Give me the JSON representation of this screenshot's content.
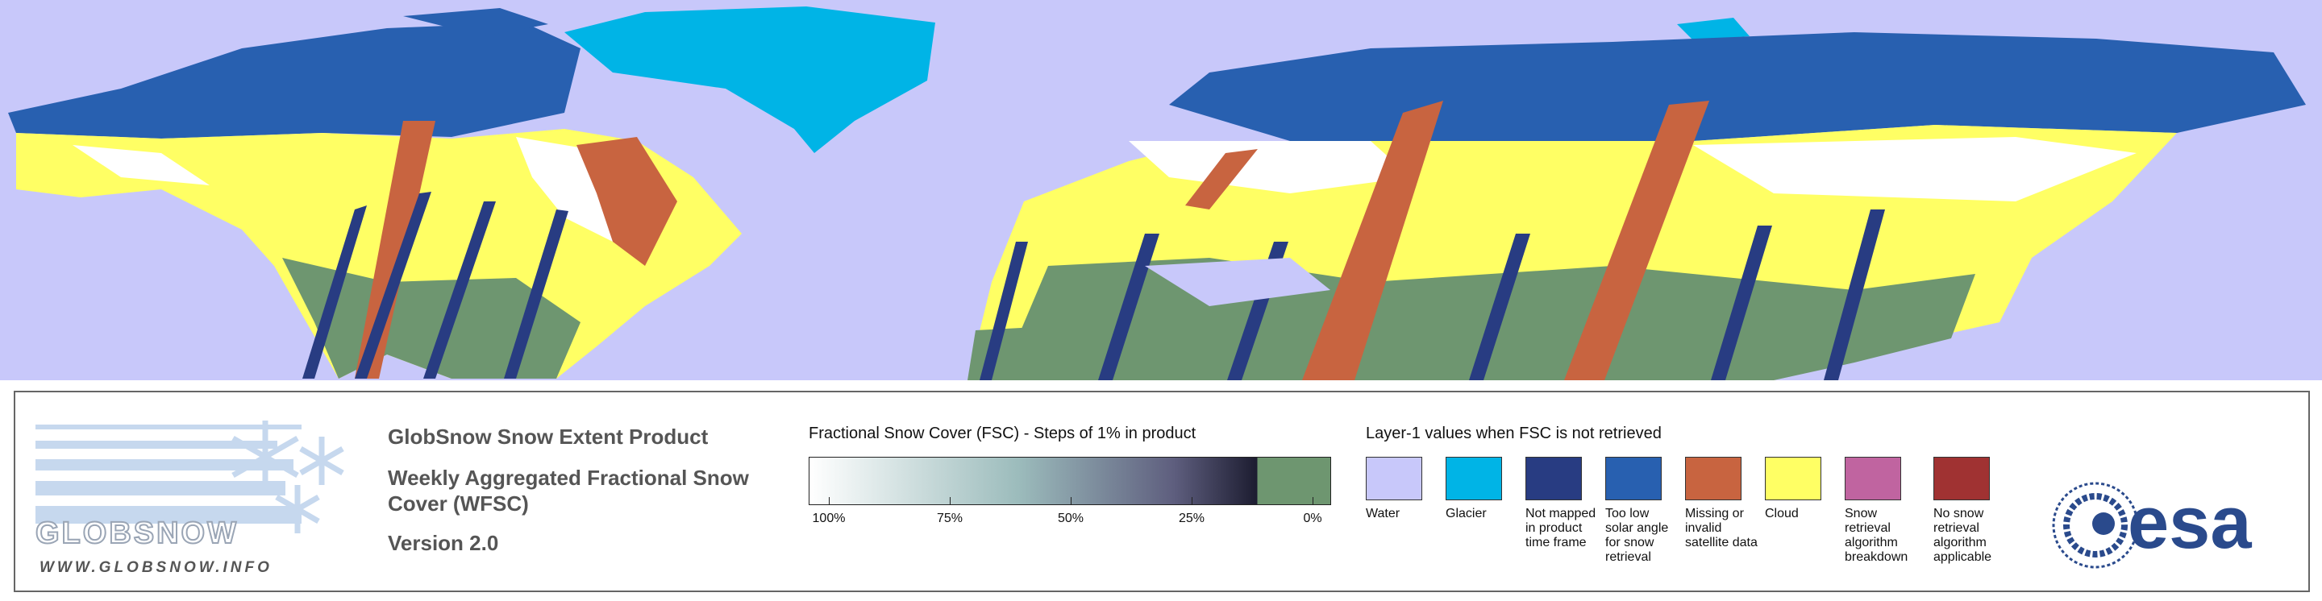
{
  "logo": {
    "name": "GLOBSNOW",
    "url": "WWW.GLOBSNOW.INFO"
  },
  "header": {
    "title": "GlobSnow Snow Extent Product",
    "subtitle": "Weekly Aggregated Fractional Snow Cover (WFSC)",
    "version": "Version 2.0"
  },
  "colorbar": {
    "title": "Fractional Snow Cover (FSC) - Steps of 1% in product",
    "ticks": [
      {
        "value": 100,
        "label": "100%"
      },
      {
        "value": 75,
        "label": "75%"
      },
      {
        "value": 50,
        "label": "50%"
      },
      {
        "value": 25,
        "label": "25%"
      },
      {
        "value": 0,
        "label": "0%"
      }
    ]
  },
  "legend": {
    "title": "Layer-1 values when FSC is not retrieved",
    "items": [
      {
        "label": "Water",
        "color": "#c8c8fa"
      },
      {
        "label": "Glacier",
        "color": "#00b4e6"
      },
      {
        "label": "Not mapped in product time frame",
        "color": "#283c82"
      },
      {
        "label": "Too low solar angle for snow retrieval",
        "color": "#2860b0"
      },
      {
        "label": "Missing or invalid satellite data",
        "color": "#c86440"
      },
      {
        "label": "Cloud",
        "color": "#ffff64"
      },
      {
        "label": "Snow retrieval algorithm breakdown",
        "color": "#c064a0"
      },
      {
        "label": "No snow retrieval algorithm applicable",
        "color": "#a03232"
      }
    ]
  },
  "agency": "esa"
}
